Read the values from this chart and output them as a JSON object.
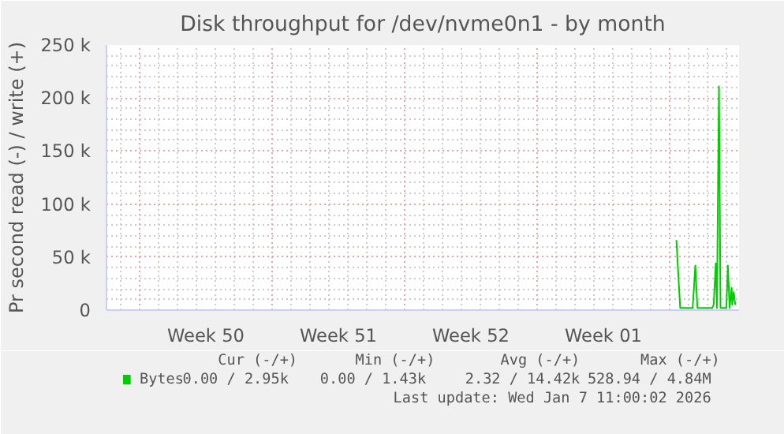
{
  "chart_data": {
    "type": "line",
    "title": "Disk throughput for /dev/nvme0n1 - by month",
    "ylabel": "Pr second read (-) / write (+)",
    "x": [
      "2026-01-05T08:38",
      "2026-01-05T13:26",
      "2026-01-06T05:17",
      "2026-01-06T08:38",
      "2026-01-06T11:17",
      "2026-01-07T06:00",
      "2026-01-07T07:55",
      "2026-01-07T10:34",
      "2026-01-07T12:00",
      "2026-01-07T14:38",
      "2026-01-07T16:34",
      "2026-01-08T00:00",
      "2026-01-08T01:55",
      "2026-01-08T04:05",
      "2026-01-08T06:43",
      "2026-01-08T07:26",
      "2026-01-08T09:22",
      "2026-01-08T11:17"
    ],
    "series": [
      {
        "name": "Bytes",
        "color": "#00cc00",
        "values": [
          66000,
          2000,
          2000,
          42000,
          2000,
          2000,
          5000,
          44000,
          2000,
          211000,
          2000,
          2000,
          42000,
          2000,
          21000,
          5000,
          17000,
          5000
        ]
      }
    ],
    "xlim": [
      "2025-12-06T06:00",
      "2026-01-08T16:05"
    ],
    "xticks": [
      {
        "value": "2025-12-08",
        "label": null
      },
      {
        "value": "2025-12-11T12:00",
        "label": "Week 50"
      },
      {
        "value": "2025-12-15",
        "label": null
      },
      {
        "value": "2025-12-18T12:00",
        "label": "Week 51"
      },
      {
        "value": "2025-12-22",
        "label": null
      },
      {
        "value": "2025-12-25T12:00",
        "label": "Week 52"
      },
      {
        "value": "2025-12-29",
        "label": null
      },
      {
        "value": "2026-01-01T12:00",
        "label": "Week 01"
      },
      {
        "value": "2026-01-05",
        "label": null
      }
    ],
    "ylim": [
      0,
      250000
    ],
    "yticks": [
      0,
      {
        "value": 50000,
        "label": "50 k"
      },
      {
        "value": 100000,
        "label": "100 k"
      },
      {
        "value": 150000,
        "label": "150 k"
      },
      {
        "value": 200000,
        "label": "200 k"
      },
      {
        "value": 250000,
        "label": "250 k"
      }
    ],
    "grid": true,
    "legend": "bottom",
    "annotations": [
      "Cur (-/+)",
      "Min (-/+)",
      "Avg (-/+)",
      "Max (-/+)",
      "0.00 /  2.95k",
      "0.00 /  1.43k",
      "2.32 / 14.42k",
      "528.94 /  4.84M",
      "Last update: Wed Jan  7 11:00:02 2026"
    ]
  }
}
